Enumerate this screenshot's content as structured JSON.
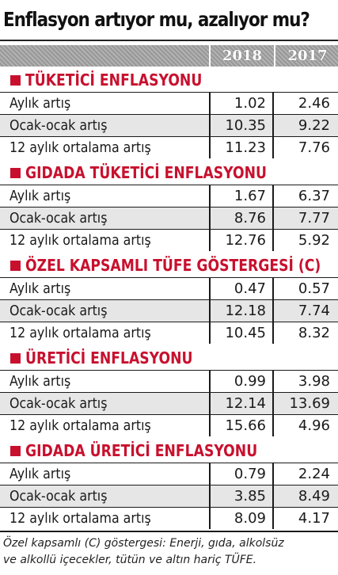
{
  "title": "Enflasyon artıyor mu, azalıyor mu?",
  "footnote": [
    "Özel kapsamlı (C) göstergesi: Enerji, gıda, alkolsüz",
    "ve alkollü içecekler, tütün ve altın hariç TÜFE."
  ],
  "colors": {
    "accent": "#c8102e",
    "header_bg": "#9a9a9a",
    "alt_row": "#e6e6e6"
  },
  "chart_data": {
    "type": "table",
    "title": "Enflasyon artıyor mu, azalıyor mu?",
    "columns": [
      "2018",
      "2017"
    ],
    "groups": [
      {
        "name": "TÜKETİCİ ENFLASYONU",
        "rows": [
          {
            "label": "Aylık artış",
            "values": [
              "1.02",
              "2.46"
            ]
          },
          {
            "label": "Ocak-ocak artış",
            "values": [
              "10.35",
              "9.22"
            ]
          },
          {
            "label": "12 aylık ortalama artış",
            "values": [
              "11.23",
              "7.76"
            ]
          }
        ]
      },
      {
        "name": "GIDADA TÜKETİCİ ENFLASYONU",
        "rows": [
          {
            "label": "Aylık artış",
            "values": [
              "1.67",
              "6.37"
            ]
          },
          {
            "label": "Ocak-ocak artış",
            "values": [
              "8.76",
              "7.77"
            ]
          },
          {
            "label": "12 aylık ortalama artış",
            "values": [
              "12.76",
              "5.92"
            ]
          }
        ]
      },
      {
        "name": "ÖZEL KAPSAMLI TÜFE GÖSTERGESİ (C)",
        "rows": [
          {
            "label": "Aylık artış",
            "values": [
              "0.47",
              "0.57"
            ]
          },
          {
            "label": "Ocak-ocak artış",
            "values": [
              "12.18",
              "7.74"
            ]
          },
          {
            "label": "12 aylık ortalama artış",
            "values": [
              "10.45",
              "8.32"
            ]
          }
        ]
      },
      {
        "name": "ÜRETİCİ ENFLASYONU",
        "rows": [
          {
            "label": "Aylık artış",
            "values": [
              "0.99",
              "3.98"
            ]
          },
          {
            "label": "Ocak-ocak artış",
            "values": [
              "12.14",
              "13.69"
            ]
          },
          {
            "label": "12 aylık ortalama artış",
            "values": [
              "15.66",
              "4.96"
            ]
          }
        ]
      },
      {
        "name": "GIDADA ÜRETİCİ ENFLASYONU",
        "rows": [
          {
            "label": "Aylık artış",
            "values": [
              "0.79",
              "2.24"
            ]
          },
          {
            "label": "Ocak-ocak artış",
            "values": [
              "3.85",
              "8.49"
            ]
          },
          {
            "label": "12 aylık ortalama artış",
            "values": [
              "8.09",
              "4.17"
            ]
          }
        ]
      }
    ]
  }
}
